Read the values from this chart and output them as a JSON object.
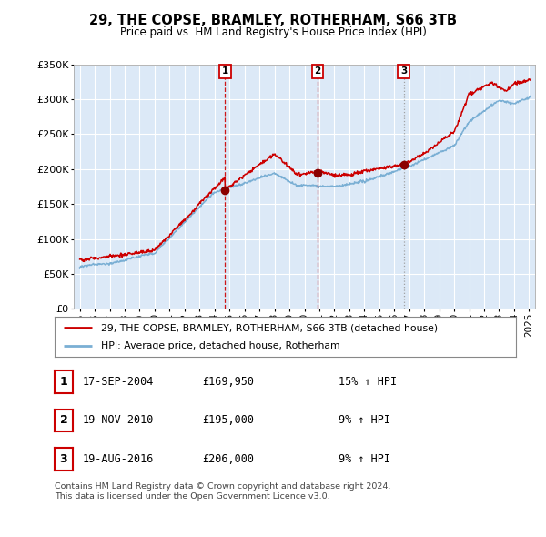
{
  "title": "29, THE COPSE, BRAMLEY, ROTHERHAM, S66 3TB",
  "subtitle": "Price paid vs. HM Land Registry's House Price Index (HPI)",
  "background_color": "#ffffff",
  "plot_bg_color": "#dce9f7",
  "red_line_color": "#cc0000",
  "blue_line_color": "#7aafd4",
  "sale_prices": [
    169950,
    195000,
    206000
  ],
  "sale_labels": [
    "1",
    "2",
    "3"
  ],
  "sale_hpi_pct": [
    "15% ↑ HPI",
    "9% ↑ HPI",
    "9% ↑ HPI"
  ],
  "sale_dates_str": [
    "17-SEP-2004",
    "19-NOV-2010",
    "19-AUG-2016"
  ],
  "sale_prices_str": [
    "£169,950",
    "£195,000",
    "£206,000"
  ],
  "sale_decimal": [
    2004.714,
    2010.886,
    2016.634
  ],
  "legend_label_red": "29, THE COPSE, BRAMLEY, ROTHERHAM, S66 3TB (detached house)",
  "legend_label_blue": "HPI: Average price, detached house, Rotherham",
  "footer_text": "Contains HM Land Registry data © Crown copyright and database right 2024.\nThis data is licensed under the Open Government Licence v3.0.",
  "ylim": [
    0,
    350000
  ],
  "yticks": [
    0,
    50000,
    100000,
    150000,
    200000,
    250000,
    300000,
    350000
  ],
  "grid_color": "#ffffff",
  "vline_colors": [
    "#cc0000",
    "#cc0000",
    "#999999"
  ],
  "box_edge_color": "#cc0000",
  "xtick_start": 1995,
  "xtick_end": 2025
}
